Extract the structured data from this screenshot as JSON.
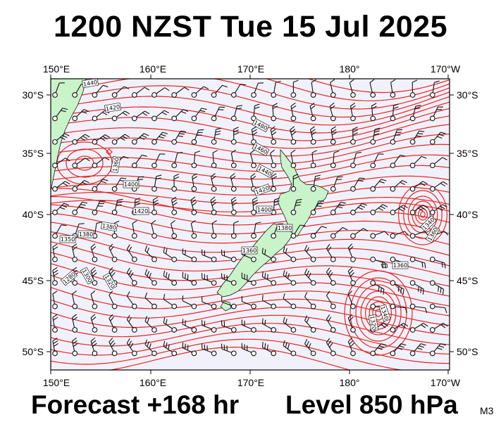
{
  "header": {
    "title": "1200 NZST Tue 15 Jul 2025"
  },
  "footer": {
    "forecast": "Forecast +168 hr",
    "level": "Level 850 hPa",
    "model": "M3"
  },
  "map": {
    "lon_labels": [
      "150°E",
      "160°E",
      "170°E",
      "180°",
      "170°W"
    ],
    "lat_labels": [
      "30°S",
      "35°S",
      "40°S",
      "45°S",
      "50°S"
    ],
    "background_color": "#f1f1fc",
    "contour_color": "#e8261f",
    "land_color": "#c9f3c9",
    "contour_labels": [
      "1440",
      "1420",
      "1480",
      "1460",
      "1440",
      "1420",
      "1400",
      "1380",
      "1360",
      "1340",
      "1360",
      "1380",
      "1380",
      "1350",
      "1300",
      "1280",
      "1320",
      "1360",
      "1320",
      "1340",
      "1360",
      "1400",
      "1420"
    ]
  }
}
